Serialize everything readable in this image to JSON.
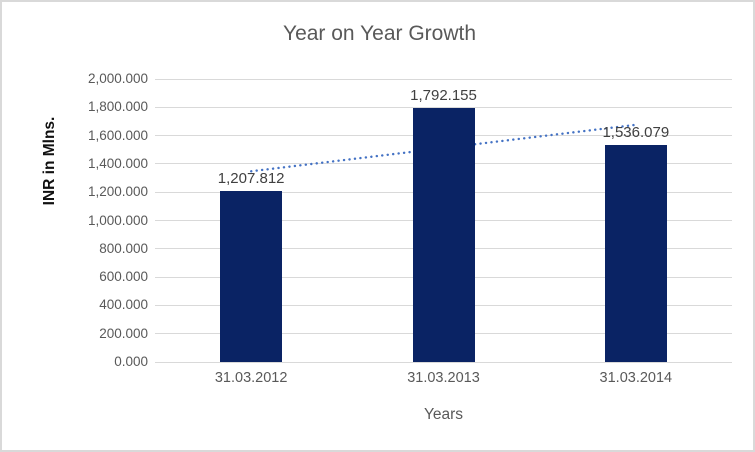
{
  "chart_data": {
    "type": "bar",
    "title": "Year on Year Growth",
    "xlabel": "Years",
    "ylabel": "INR in Mlns.",
    "categories": [
      "31.03.2012",
      "31.03.2013",
      "31.03.2014"
    ],
    "values": [
      1207.812,
      1792.155,
      1536.079
    ],
    "data_labels": [
      "1,207.812",
      "1,792.155",
      "1,536.079"
    ],
    "ylim": [
      0,
      2000
    ],
    "ytick_step": 200,
    "yticks": [
      "0.000",
      "200.000",
      "400.000",
      "600.000",
      "800.000",
      "1,000.000",
      "1,200.000",
      "1,400.000",
      "1,600.000",
      "1,800.000",
      "2,000.000"
    ],
    "grid": true,
    "legend": "none",
    "bar_color": "#0A2364",
    "data_label_color": "#404040",
    "axis_text_color": "#595959",
    "gridline_color": "#D9D9D9",
    "trendline": {
      "kind": "linear",
      "style": "dotted",
      "color": "#4472C4",
      "start_value": 1347.9,
      "end_value": 1676.2
    }
  }
}
